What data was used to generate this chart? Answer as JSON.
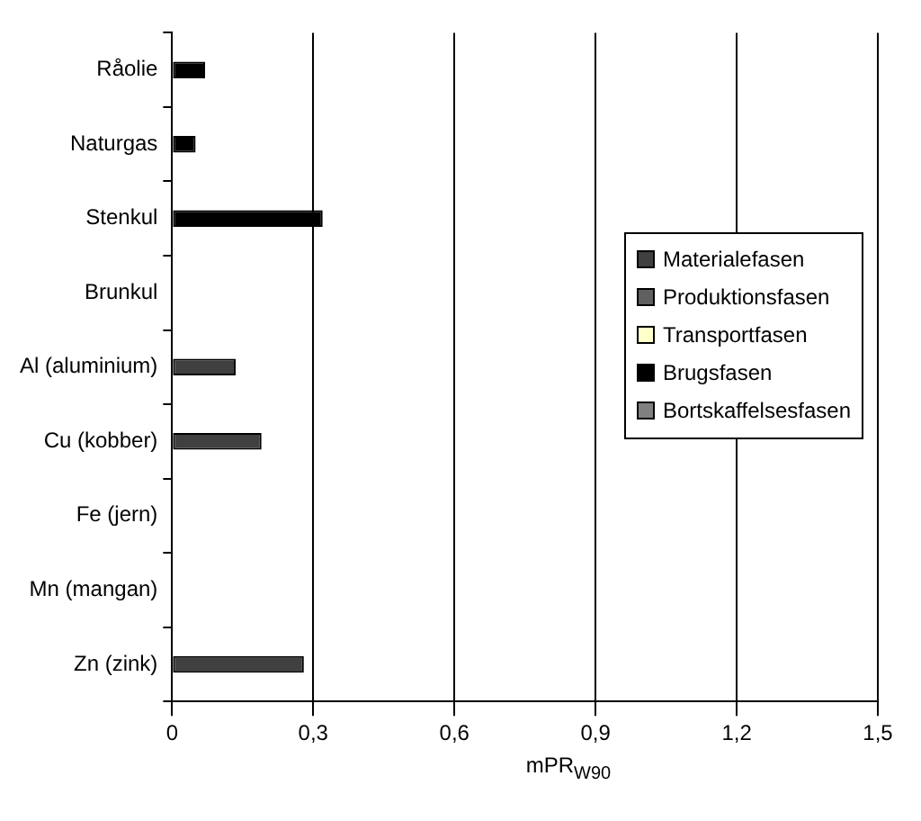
{
  "chart_data": {
    "type": "bar",
    "orientation": "horizontal",
    "stacked": true,
    "xlabel": "mPR$_{W90}$",
    "categories": [
      "Råolie",
      "Naturgas",
      "Stenkul",
      "Brunkul",
      "Al (aluminium)",
      "Cu (kobber)",
      "Fe (jern)",
      "Mn (mangan)",
      "Zn (zink)"
    ],
    "series": [
      {
        "name": "Materialefasen",
        "color": "#404040",
        "values": [
          0,
          0,
          0,
          0,
          0.135,
          0.19,
          0,
          0,
          0.28
        ]
      },
      {
        "name": "Produktionsfasen",
        "color": "#606060",
        "values": [
          0,
          0,
          0,
          0,
          0,
          0,
          0,
          0,
          0
        ]
      },
      {
        "name": "Transportfasen",
        "color": "#ffffcc",
        "values": [
          0,
          0,
          0,
          0,
          0,
          0,
          0,
          0,
          0
        ]
      },
      {
        "name": "Brugsfasen",
        "color": "#000000",
        "values": [
          0.07,
          0.05,
          0.32,
          0,
          0,
          0,
          0,
          0,
          0
        ]
      },
      {
        "name": "Bortskaffelsesfasen",
        "color": "#808080",
        "values": [
          0,
          0,
          0,
          0,
          0,
          0,
          0,
          0,
          0
        ]
      }
    ],
    "xlim": [
      0,
      1.5
    ],
    "xticks": [
      0,
      {
        "value": 0.3,
        "label": "0,3"
      },
      {
        "value": 0.6,
        "label": "0,6"
      },
      {
        "value": 0.9,
        "label": "0,9"
      },
      {
        "value": 1.2,
        "label": "1,2"
      },
      {
        "value": 1.5,
        "label": "1,5"
      }
    ],
    "grid": "x",
    "legend": "right"
  }
}
